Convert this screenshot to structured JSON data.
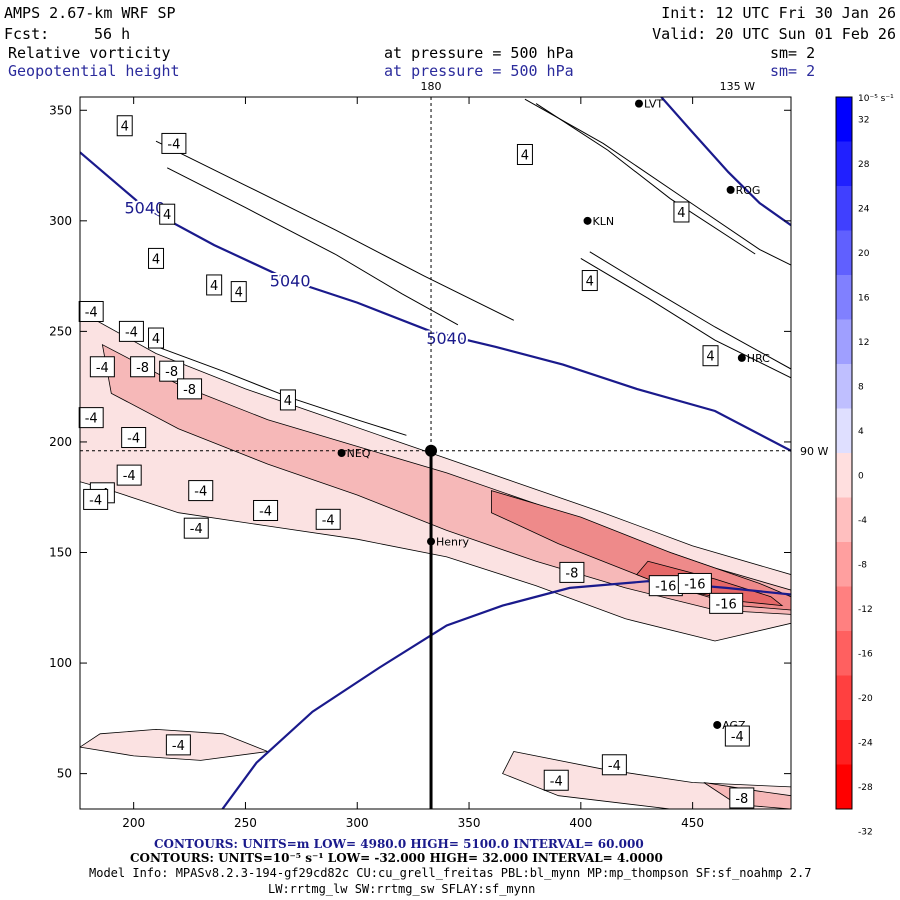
{
  "header": {
    "model": "AMPS 2.67-km WRF SP",
    "fcst_label": "Fcst:",
    "fcst_value": "56 h",
    "init": "Init: 12 UTC Fri 30 Jan 26",
    "valid": "Valid: 20 UTC Sun 01 Feb 26",
    "field1": "Relative vorticity",
    "field2": "Geopotential height",
    "pressure1": "at pressure =  500 hPa",
    "pressure2": "at pressure =  500 hPa",
    "sm1": "sm= 2",
    "sm2": "sm= 2"
  },
  "footer": {
    "contours1": "CONTOURS:  UNITS=m  LOW=   4980.0        HIGH=  5100.0        INTERVAL=   60.000",
    "contours2": "CONTOURS:  UNITS=10⁻⁵ s⁻¹  LOW=  -32.000        HIGH=  32.000        INTERVAL=   4.0000",
    "model_info": "Model Info: MPASv8.2.3-194-gf29cd82c CU:cu_grell_freitas PBL:bl_mynn MP:mp_thompson SF:sf_noahmp 2.7",
    "model_info2": "LW:rrtmg_lw SW:rrtmg_sw SFLAY:sf_mynn"
  },
  "colors": {
    "height_contour": "#1a1a8c",
    "axes": "#000000"
  },
  "chart_data": {
    "type": "contour-map",
    "title": "Relative vorticity / Geopotential height at 500 hPa",
    "xlim": [
      176,
      494
    ],
    "ylim": [
      34,
      356
    ],
    "x_ticks": [
      200,
      250,
      300,
      350,
      400,
      450
    ],
    "y_ticks": [
      50,
      100,
      150,
      200,
      250,
      300,
      350
    ],
    "longitude_labels": [
      {
        "text": "180",
        "x": 333,
        "y": 356
      },
      {
        "text": "135 W",
        "x": 470,
        "y": 356
      },
      {
        "text": "90 W",
        "x": 494,
        "y": 196
      }
    ],
    "crosshair": {
      "x": 333,
      "y": 196
    },
    "colorbar": {
      "units": "10⁻⁵ s⁻¹",
      "levels": [
        32,
        28,
        24,
        20,
        16,
        12,
        8,
        4,
        0,
        -4,
        -8,
        -12,
        -16,
        -20,
        -24,
        -28,
        -32
      ],
      "tick_labels": [
        "32",
        "28",
        "24",
        "20",
        "16",
        "12",
        "8",
        "4",
        "0",
        "-4",
        "-8",
        "-12",
        "-16",
        "-20",
        "-24",
        "-28",
        "-32"
      ]
    },
    "height_contours": [
      {
        "level": 5040,
        "label": "5040",
        "points": [
          [
            176,
            331
          ],
          [
            205,
            306
          ],
          [
            236,
            289
          ],
          [
            270,
            273
          ],
          [
            300,
            263
          ],
          [
            333,
            250
          ],
          [
            362,
            243
          ],
          [
            392,
            235
          ],
          [
            425,
            224
          ],
          [
            460,
            214
          ],
          [
            494,
            196
          ]
        ]
      },
      {
        "level": 5100,
        "label": "",
        "points": [
          [
            239,
            33
          ],
          [
            255,
            55
          ],
          [
            280,
            78
          ],
          [
            310,
            98
          ],
          [
            340,
            117
          ],
          [
            365,
            126
          ],
          [
            395,
            134
          ],
          [
            430,
            137
          ],
          [
            465,
            134
          ],
          [
            494,
            131
          ]
        ]
      },
      {
        "level": 4980,
        "label": "",
        "points": [
          [
            436,
            356
          ],
          [
            450,
            340
          ],
          [
            466,
            322
          ],
          [
            480,
            308
          ],
          [
            494,
            298
          ]
        ]
      }
    ],
    "stations": [
      {
        "name": "LVT",
        "x": 426,
        "y": 353
      },
      {
        "name": "ROG",
        "x": 467,
        "y": 314
      },
      {
        "name": "KLN",
        "x": 403,
        "y": 300
      },
      {
        "name": "HRC",
        "x": 472,
        "y": 238
      },
      {
        "name": "NEQ",
        "x": 293,
        "y": 195
      },
      {
        "name": "Henry",
        "x": 333,
        "y": 155
      },
      {
        "name": "AGZ",
        "x": 461,
        "y": 72
      }
    ],
    "vorticity_labels": [
      {
        "v": "4",
        "x": 196,
        "y": 343
      },
      {
        "v": "-4",
        "x": 218,
        "y": 335
      },
      {
        "v": "4",
        "x": 375,
        "y": 330
      },
      {
        "v": "4",
        "x": 215,
        "y": 303
      },
      {
        "v": "4",
        "x": 445,
        "y": 304
      },
      {
        "v": "4",
        "x": 210,
        "y": 283
      },
      {
        "v": "4",
        "x": 236,
        "y": 271
      },
      {
        "v": "4",
        "x": 247,
        "y": 268
      },
      {
        "v": "4",
        "x": 404,
        "y": 273
      },
      {
        "v": "4",
        "x": 210,
        "y": 247
      },
      {
        "v": "4",
        "x": 458,
        "y": 239
      },
      {
        "v": "4",
        "x": 269,
        "y": 219
      },
      {
        "v": "-4",
        "x": 181,
        "y": 259
      },
      {
        "v": "-4",
        "x": 199,
        "y": 250
      },
      {
        "v": "-4",
        "x": 186,
        "y": 234
      },
      {
        "v": "-8",
        "x": 204,
        "y": 234
      },
      {
        "v": "-8",
        "x": 217,
        "y": 232
      },
      {
        "v": "-8",
        "x": 225,
        "y": 224
      },
      {
        "v": "-4",
        "x": 181,
        "y": 211
      },
      {
        "v": "-4",
        "x": 200,
        "y": 202
      },
      {
        "v": "-4",
        "x": 198,
        "y": 185
      },
      {
        "v": "-4",
        "x": 186,
        "y": 177
      },
      {
        "v": "-4",
        "x": 183,
        "y": 174
      },
      {
        "v": "-4",
        "x": 230,
        "y": 178
      },
      {
        "v": "-4",
        "x": 259,
        "y": 169
      },
      {
        "v": "-4",
        "x": 287,
        "y": 165
      },
      {
        "v": "-4",
        "x": 228,
        "y": 161
      },
      {
        "v": "-8",
        "x": 396,
        "y": 141
      },
      {
        "v": "-16",
        "x": 438,
        "y": 135
      },
      {
        "v": "-16",
        "x": 451,
        "y": 136
      },
      {
        "v": "-16",
        "x": 465,
        "y": 127
      },
      {
        "v": "-4",
        "x": 220,
        "y": 63
      },
      {
        "v": "-4",
        "x": 470,
        "y": 67
      },
      {
        "v": "-4",
        "x": 415,
        "y": 54
      },
      {
        "v": "-4",
        "x": 389,
        "y": 47
      },
      {
        "v": "-8",
        "x": 472,
        "y": 39
      }
    ],
    "positive_vorticity_lines": [
      [
        [
          210,
          336
        ],
        [
          250,
          316
        ],
        [
          290,
          296
        ],
        [
          330,
          275
        ],
        [
          370,
          255
        ]
      ],
      [
        [
          215,
          324
        ],
        [
          250,
          306
        ],
        [
          290,
          285
        ],
        [
          320,
          267
        ],
        [
          345,
          253
        ]
      ],
      [
        [
          208,
          244
        ],
        [
          240,
          232
        ],
        [
          270,
          220
        ],
        [
          300,
          210
        ],
        [
          322,
          203
        ]
      ],
      [
        [
          375,
          355
        ],
        [
          410,
          335
        ],
        [
          445,
          311
        ],
        [
          480,
          287
        ],
        [
          494,
          280
        ]
      ],
      [
        [
          380,
          353
        ],
        [
          412,
          332
        ],
        [
          440,
          310
        ],
        [
          478,
          285
        ]
      ],
      [
        [
          400,
          283
        ],
        [
          430,
          265
        ],
        [
          460,
          246
        ],
        [
          494,
          229
        ]
      ],
      [
        [
          404,
          286
        ],
        [
          430,
          270
        ],
        [
          460,
          252
        ],
        [
          494,
          233
        ]
      ]
    ],
    "negative_bands": [
      {
        "level": -4,
        "points": [
          [
            176,
            259
          ],
          [
            210,
            240
          ],
          [
            250,
            224
          ],
          [
            290,
            210
          ],
          [
            330,
            196
          ],
          [
            370,
            182
          ],
          [
            410,
            168
          ],
          [
            450,
            153
          ],
          [
            494,
            140
          ],
          [
            494,
            118
          ],
          [
            460,
            110
          ],
          [
            420,
            120
          ],
          [
            380,
            135
          ],
          [
            340,
            148
          ],
          [
            300,
            156
          ],
          [
            260,
            162
          ],
          [
            220,
            168
          ],
          [
            190,
            178
          ],
          [
            176,
            182
          ]
        ]
      },
      {
        "level": -8,
        "points": [
          [
            186,
            244
          ],
          [
            220,
            226
          ],
          [
            260,
            210
          ],
          [
            300,
            198
          ],
          [
            340,
            186
          ],
          [
            380,
            172
          ],
          [
            420,
            157
          ],
          [
            460,
            143
          ],
          [
            494,
            133
          ],
          [
            494,
            122
          ],
          [
            460,
            124
          ],
          [
            420,
            134
          ],
          [
            380,
            146
          ],
          [
            340,
            160
          ],
          [
            300,
            176
          ],
          [
            260,
            190
          ],
          [
            220,
            206
          ],
          [
            190,
            222
          ]
        ]
      },
      {
        "level": -12,
        "points": [
          [
            360,
            178
          ],
          [
            400,
            166
          ],
          [
            440,
            150
          ],
          [
            480,
            136
          ],
          [
            494,
            130
          ],
          [
            494,
            124
          ],
          [
            470,
            126
          ],
          [
            430,
            138
          ],
          [
            390,
            154
          ],
          [
            360,
            168
          ]
        ]
      },
      {
        "level": -16,
        "points": [
          [
            430,
            146
          ],
          [
            460,
            138
          ],
          [
            485,
            130
          ],
          [
            490,
            126
          ],
          [
            470,
            128
          ],
          [
            440,
            134
          ],
          [
            425,
            140
          ]
        ]
      },
      {
        "level": -4,
        "points": [
          [
            176,
            62
          ],
          [
            200,
            58
          ],
          [
            230,
            56
          ],
          [
            260,
            60
          ],
          [
            240,
            68
          ],
          [
            210,
            70
          ],
          [
            185,
            68
          ]
        ]
      },
      {
        "level": -4,
        "points": [
          [
            370,
            60
          ],
          [
            410,
            52
          ],
          [
            450,
            46
          ],
          [
            494,
            44
          ],
          [
            494,
            34
          ],
          [
            440,
            34
          ],
          [
            390,
            40
          ],
          [
            365,
            50
          ]
        ]
      },
      {
        "level": -8,
        "points": [
          [
            455,
            46
          ],
          [
            480,
            42
          ],
          [
            494,
            40
          ],
          [
            494,
            34
          ],
          [
            470,
            36
          ]
        ]
      }
    ]
  }
}
